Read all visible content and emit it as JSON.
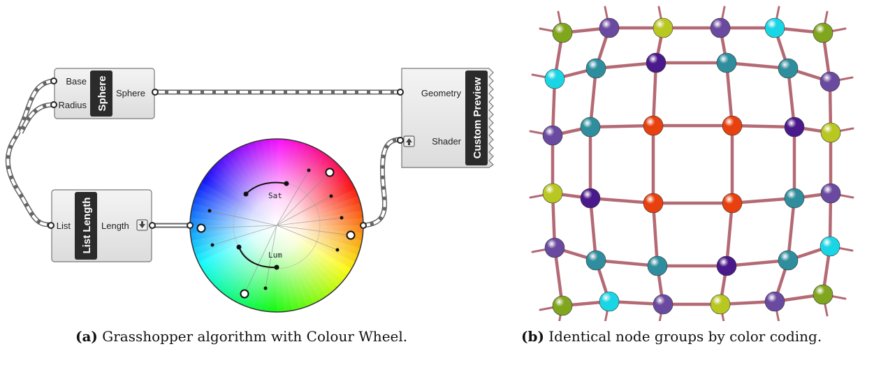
{
  "panel_a": {
    "sphere_component": {
      "inputs": [
        "Base",
        "Radius"
      ],
      "title": "Sphere",
      "output": "Sphere"
    },
    "preview_component": {
      "inputs": [
        "Geometry",
        "Shader"
      ],
      "title": "Custom Preview"
    },
    "list_length_component": {
      "input": "List",
      "title": "List Length",
      "output": "Length"
    },
    "colour_wheel": {
      "sat_label": "Sat",
      "lum_label": "Lum"
    },
    "caption_label": "(a)",
    "caption_text": "Grasshopper algorithm with Colour Wheel."
  },
  "panel_b": {
    "caption_label": "(b)",
    "caption_text": "Identical node groups by color coding.",
    "node_colors": {
      "green": "#7fa61c",
      "purple": "#6a4aa0",
      "yellow": "#b8c820",
      "cyan": "#18d6e6",
      "teal": "#2e8e9e",
      "violet": "#4a1a8c",
      "red": "#e8400e"
    },
    "edge_color": "#b46a74",
    "grid": [
      [
        "green",
        "purple",
        "yellow",
        "purple",
        "cyan",
        "green"
      ],
      [
        "cyan",
        "teal",
        "violet",
        "teal",
        "teal",
        "purple"
      ],
      [
        "purple",
        "teal",
        "red",
        "red",
        "violet",
        "yellow"
      ],
      [
        "yellow",
        "violet",
        "red",
        "red",
        "teal",
        "purple"
      ],
      [
        "purple",
        "teal",
        "teal",
        "violet",
        "teal",
        "cyan"
      ],
      [
        "green",
        "cyan",
        "purple",
        "yellow",
        "purple",
        "green"
      ]
    ]
  }
}
